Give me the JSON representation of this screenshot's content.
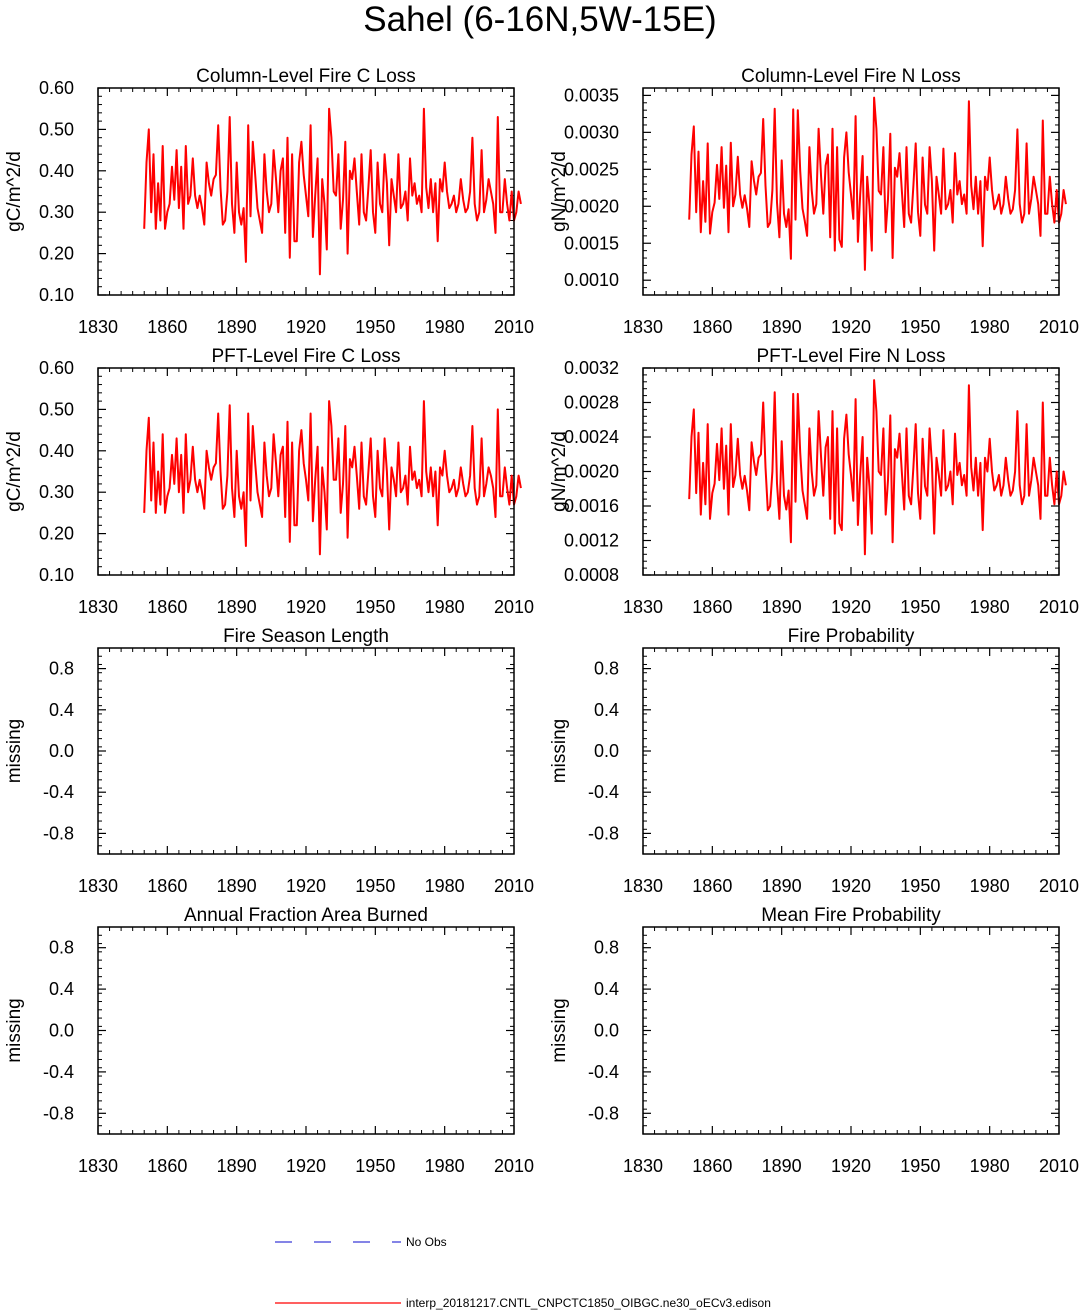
{
  "page": {
    "title": "Sahel (6-16N,5W-15E)"
  },
  "legend": {
    "items": [
      {
        "label": "No Obs",
        "color": "#3a3ad8",
        "style": "dashed"
      },
      {
        "label": "interp_20181217.CNTL_CNPCTC1850_OIBGC.ne30_oECv3.edison",
        "color": "#ff0000",
        "style": "solid"
      }
    ]
  },
  "chart_data": [
    {
      "type": "line",
      "title": "Column-Level Fire C Loss",
      "ylabel": "gC/m^2/d",
      "xlabel": "",
      "xlim": [
        1830,
        2010
      ],
      "ylim": [
        0.1,
        0.6
      ],
      "xticks": [
        "1830",
        "1860",
        "1890",
        "1920",
        "1950",
        "1980",
        "2010"
      ],
      "yticks": [
        "0.10",
        "0.20",
        "0.30",
        "0.40",
        "0.50",
        "0.60"
      ],
      "series": [
        {
          "name": "interp_20181217.CNTL_CNPCTC1850_OIBGC.ne30_oECv3.edison",
          "color": "#ff0000",
          "x_start": 1850,
          "x_step": 1,
          "values": [
            0.26,
            0.42,
            0.5,
            0.3,
            0.44,
            0.26,
            0.37,
            0.28,
            0.46,
            0.26,
            0.3,
            0.32,
            0.41,
            0.33,
            0.45,
            0.31,
            0.41,
            0.26,
            0.46,
            0.32,
            0.34,
            0.43,
            0.34,
            0.31,
            0.34,
            0.31,
            0.27,
            0.42,
            0.37,
            0.34,
            0.38,
            0.39,
            0.51,
            0.36,
            0.27,
            0.28,
            0.35,
            0.53,
            0.32,
            0.25,
            0.42,
            0.3,
            0.27,
            0.31,
            0.18,
            0.51,
            0.29,
            0.47,
            0.39,
            0.31,
            0.28,
            0.25,
            0.44,
            0.35,
            0.3,
            0.32,
            0.45,
            0.38,
            0.3,
            0.4,
            0.43,
            0.25,
            0.48,
            0.19,
            0.44,
            0.23,
            0.23,
            0.42,
            0.47,
            0.39,
            0.34,
            0.29,
            0.51,
            0.24,
            0.34,
            0.43,
            0.15,
            0.38,
            0.32,
            0.21,
            0.55,
            0.48,
            0.35,
            0.34,
            0.44,
            0.26,
            0.33,
            0.47,
            0.2,
            0.4,
            0.38,
            0.43,
            0.35,
            0.27,
            0.44,
            0.3,
            0.28,
            0.36,
            0.45,
            0.3,
            0.25,
            0.42,
            0.32,
            0.3,
            0.44,
            0.37,
            0.22,
            0.38,
            0.34,
            0.3,
            0.44,
            0.31,
            0.32,
            0.35,
            0.28,
            0.43,
            0.34,
            0.37,
            0.32,
            0.34,
            0.3,
            0.55,
            0.36,
            0.31,
            0.38,
            0.3,
            0.37,
            0.23,
            0.38,
            0.35,
            0.42,
            0.35,
            0.31,
            0.32,
            0.34,
            0.3,
            0.32,
            0.38,
            0.33,
            0.3,
            0.31,
            0.35,
            0.48,
            0.32,
            0.28,
            0.3,
            0.45,
            0.3,
            0.33,
            0.38,
            0.35,
            0.32,
            0.25,
            0.53,
            0.3,
            0.3,
            0.38,
            0.32,
            0.28,
            0.35,
            0.28,
            0.3,
            0.35,
            0.32
          ]
        }
      ]
    },
    {
      "type": "line",
      "title": "Column-Level Fire N Loss",
      "ylabel": "gN/m^2/d",
      "xlabel": "",
      "xlim": [
        1830,
        2010
      ],
      "ylim": [
        0.0008,
        0.0036
      ],
      "xticks": [
        "1830",
        "1860",
        "1890",
        "1920",
        "1950",
        "1980",
        "2010"
      ],
      "yticks": [
        "0.0010",
        "0.0015",
        "0.0020",
        "0.0025",
        "0.0030",
        "0.0035"
      ],
      "series": [
        {
          "name": "interp_20181217.CNTL_CNPCTC1850_OIBGC.ne30_oECv3.edison",
          "color": "#ff0000",
          "x_start": 1850,
          "x_step": 1,
          "values": [
            0.00182,
            0.0027,
            0.00308,
            0.00192,
            0.00274,
            0.00165,
            0.00234,
            0.00179,
            0.00285,
            0.00163,
            0.00192,
            0.00205,
            0.00256,
            0.0021,
            0.0028,
            0.00198,
            0.00255,
            0.00165,
            0.00286,
            0.002,
            0.00216,
            0.00267,
            0.00216,
            0.00198,
            0.00215,
            0.00197,
            0.00172,
            0.00261,
            0.00235,
            0.00216,
            0.0024,
            0.00245,
            0.00318,
            0.00228,
            0.00172,
            0.00178,
            0.00222,
            0.00332,
            0.00205,
            0.00158,
            0.00262,
            0.0019,
            0.00172,
            0.00196,
            0.00129,
            0.00331,
            0.00182,
            0.0033,
            0.00248,
            0.00197,
            0.0018,
            0.0016,
            0.0028,
            0.00222,
            0.0019,
            0.00203,
            0.00305,
            0.00242,
            0.0019,
            0.00255,
            0.0027,
            0.00158,
            0.00305,
            0.0014,
            0.0028,
            0.00155,
            0.00145,
            0.00266,
            0.003,
            0.00246,
            0.00216,
            0.00183,
            0.00322,
            0.00152,
            0.00216,
            0.00268,
            0.00114,
            0.0024,
            0.002,
            0.0014,
            0.00347,
            0.00305,
            0.00221,
            0.00216,
            0.0028,
            0.00165,
            0.0021,
            0.00298,
            0.0013,
            0.00252,
            0.0024,
            0.00272,
            0.00222,
            0.00172,
            0.0028,
            0.0019,
            0.00178,
            0.00228,
            0.00285,
            0.00192,
            0.0016,
            0.00266,
            0.00202,
            0.0019,
            0.0028,
            0.00234,
            0.0014,
            0.0024,
            0.00216,
            0.0019,
            0.00278,
            0.00196,
            0.00203,
            0.00222,
            0.00178,
            0.00272,
            0.00216,
            0.00234,
            0.00203,
            0.00216,
            0.0019,
            0.00342,
            0.00228,
            0.00196,
            0.0024,
            0.0019,
            0.00234,
            0.00146,
            0.0024,
            0.00222,
            0.00266,
            0.00222,
            0.00196,
            0.00203,
            0.00216,
            0.0019,
            0.00203,
            0.0024,
            0.0021,
            0.0019,
            0.00196,
            0.00222,
            0.00304,
            0.00203,
            0.00178,
            0.0019,
            0.00285,
            0.0019,
            0.0021,
            0.0024,
            0.00222,
            0.00203,
            0.0016,
            0.00316,
            0.0019,
            0.0019,
            0.0024,
            0.00203,
            0.00178,
            0.00222,
            0.00178,
            0.0019,
            0.00222,
            0.00203
          ]
        }
      ]
    },
    {
      "type": "line",
      "title": "PFT-Level Fire C Loss",
      "ylabel": "gC/m^2/d",
      "xlabel": "",
      "xlim": [
        1830,
        2010
      ],
      "ylim": [
        0.1,
        0.6
      ],
      "xticks": [
        "1830",
        "1860",
        "1890",
        "1920",
        "1950",
        "1980",
        "2010"
      ],
      "yticks": [
        "0.10",
        "0.20",
        "0.30",
        "0.40",
        "0.50",
        "0.60"
      ],
      "series": [
        {
          "name": "interp_20181217.CNTL_CNPCTC1850_OIBGC.ne30_oECv3.edison",
          "color": "#ff0000",
          "x_start": 1850,
          "x_step": 1,
          "values": [
            0.25,
            0.4,
            0.48,
            0.28,
            0.42,
            0.25,
            0.35,
            0.27,
            0.44,
            0.25,
            0.29,
            0.31,
            0.39,
            0.32,
            0.43,
            0.3,
            0.39,
            0.25,
            0.44,
            0.3,
            0.33,
            0.41,
            0.33,
            0.3,
            0.33,
            0.3,
            0.26,
            0.4,
            0.36,
            0.33,
            0.36,
            0.37,
            0.49,
            0.35,
            0.26,
            0.27,
            0.34,
            0.51,
            0.31,
            0.24,
            0.4,
            0.29,
            0.26,
            0.3,
            0.17,
            0.49,
            0.28,
            0.46,
            0.37,
            0.3,
            0.27,
            0.24,
            0.42,
            0.34,
            0.29,
            0.31,
            0.44,
            0.37,
            0.29,
            0.39,
            0.41,
            0.24,
            0.47,
            0.18,
            0.42,
            0.22,
            0.22,
            0.4,
            0.45,
            0.37,
            0.33,
            0.28,
            0.49,
            0.23,
            0.33,
            0.41,
            0.15,
            0.36,
            0.3,
            0.21,
            0.52,
            0.46,
            0.33,
            0.33,
            0.43,
            0.25,
            0.32,
            0.46,
            0.19,
            0.38,
            0.36,
            0.41,
            0.34,
            0.26,
            0.42,
            0.29,
            0.27,
            0.35,
            0.43,
            0.29,
            0.24,
            0.4,
            0.31,
            0.29,
            0.43,
            0.35,
            0.21,
            0.36,
            0.33,
            0.29,
            0.42,
            0.3,
            0.31,
            0.34,
            0.27,
            0.41,
            0.33,
            0.35,
            0.31,
            0.33,
            0.29,
            0.52,
            0.35,
            0.3,
            0.36,
            0.29,
            0.35,
            0.22,
            0.36,
            0.34,
            0.4,
            0.34,
            0.3,
            0.31,
            0.33,
            0.29,
            0.31,
            0.36,
            0.32,
            0.29,
            0.3,
            0.34,
            0.46,
            0.31,
            0.27,
            0.29,
            0.43,
            0.29,
            0.32,
            0.36,
            0.34,
            0.31,
            0.24,
            0.5,
            0.29,
            0.29,
            0.36,
            0.31,
            0.27,
            0.34,
            0.27,
            0.29,
            0.34,
            0.31
          ]
        }
      ]
    },
    {
      "type": "line",
      "title": "PFT-Level Fire N Loss",
      "ylabel": "gN/m^2/d",
      "xlabel": "",
      "xlim": [
        1830,
        2010
      ],
      "ylim": [
        0.0008,
        0.0032
      ],
      "xticks": [
        "1830",
        "1860",
        "1890",
        "1920",
        "1950",
        "1980",
        "2010"
      ],
      "yticks": [
        "0.0008",
        "0.0012",
        "0.0016",
        "0.0020",
        "0.0024",
        "0.0028",
        "0.0032"
      ],
      "series": [
        {
          "name": "interp_20181217.CNTL_CNPCTC1850_OIBGC.ne30_oECv3.edison",
          "color": "#ff0000",
          "x_start": 1850,
          "x_step": 1,
          "values": [
            0.00168,
            0.0024,
            0.00272,
            0.00175,
            0.00245,
            0.0015,
            0.0021,
            0.00162,
            0.00255,
            0.00145,
            0.00175,
            0.00186,
            0.00232,
            0.0019,
            0.0025,
            0.0018,
            0.0023,
            0.0015,
            0.00255,
            0.00182,
            0.00196,
            0.00238,
            0.00196,
            0.0018,
            0.00195,
            0.00178,
            0.00155,
            0.00234,
            0.00212,
            0.00196,
            0.00216,
            0.0022,
            0.0028,
            0.00205,
            0.00155,
            0.0016,
            0.002,
            0.00292,
            0.00186,
            0.00145,
            0.00235,
            0.00172,
            0.00156,
            0.00178,
            0.00118,
            0.0029,
            0.00165,
            0.0029,
            0.00222,
            0.00178,
            0.00162,
            0.00145,
            0.0025,
            0.002,
            0.00172,
            0.00184,
            0.0027,
            0.00218,
            0.00172,
            0.00228,
            0.0024,
            0.00145,
            0.0027,
            0.00128,
            0.0025,
            0.0014,
            0.00132,
            0.00238,
            0.00266,
            0.0022,
            0.00196,
            0.00166,
            0.00284,
            0.00138,
            0.00196,
            0.0024,
            0.00104,
            0.00216,
            0.00182,
            0.00128,
            0.00306,
            0.0027,
            0.002,
            0.00196,
            0.0025,
            0.0015,
            0.0019,
            0.00265,
            0.00118,
            0.00226,
            0.00216,
            0.00244,
            0.002,
            0.00156,
            0.0025,
            0.00172,
            0.00162,
            0.00205,
            0.00255,
            0.00175,
            0.00145,
            0.00238,
            0.00183,
            0.00172,
            0.0025,
            0.0021,
            0.00128,
            0.00216,
            0.00196,
            0.00172,
            0.00248,
            0.00178,
            0.00184,
            0.002,
            0.00162,
            0.00244,
            0.00196,
            0.0021,
            0.00184,
            0.00196,
            0.00172,
            0.003,
            0.00205,
            0.00178,
            0.00216,
            0.00172,
            0.0021,
            0.00132,
            0.00216,
            0.002,
            0.00238,
            0.002,
            0.00178,
            0.00184,
            0.00196,
            0.00172,
            0.00184,
            0.00216,
            0.0019,
            0.00172,
            0.00178,
            0.002,
            0.0027,
            0.00184,
            0.00162,
            0.00172,
            0.00255,
            0.00172,
            0.0019,
            0.00216,
            0.002,
            0.00184,
            0.00145,
            0.0028,
            0.00172,
            0.00172,
            0.00216,
            0.00184,
            0.00162,
            0.002,
            0.00162,
            0.00172,
            0.002,
            0.00184
          ]
        }
      ]
    },
    {
      "type": "line",
      "title": "Fire Season Length",
      "ylabel": "missing",
      "xlabel": "",
      "xlim": [
        1830,
        2010
      ],
      "ylim": [
        -1.0,
        1.0
      ],
      "xticks": [
        "1830",
        "1860",
        "1890",
        "1920",
        "1950",
        "1980",
        "2010"
      ],
      "yticks": [
        "-0.8",
        "-0.4",
        "0.0",
        "0.4",
        "0.8"
      ],
      "series": []
    },
    {
      "type": "line",
      "title": "Fire Probability",
      "ylabel": "missing",
      "xlabel": "",
      "xlim": [
        1830,
        2010
      ],
      "ylim": [
        -1.0,
        1.0
      ],
      "xticks": [
        "1830",
        "1860",
        "1890",
        "1920",
        "1950",
        "1980",
        "2010"
      ],
      "yticks": [
        "-0.8",
        "-0.4",
        "0.0",
        "0.4",
        "0.8"
      ],
      "series": []
    },
    {
      "type": "line",
      "title": "Annual Fraction Area Burned",
      "ylabel": "missing",
      "xlabel": "",
      "xlim": [
        1830,
        2010
      ],
      "ylim": [
        -1.0,
        1.0
      ],
      "xticks": [
        "1830",
        "1860",
        "1890",
        "1920",
        "1950",
        "1980",
        "2010"
      ],
      "yticks": [
        "-0.8",
        "-0.4",
        "0.0",
        "0.4",
        "0.8"
      ],
      "series": []
    },
    {
      "type": "line",
      "title": "Mean Fire Probability",
      "ylabel": "missing",
      "xlabel": "",
      "xlim": [
        1830,
        2010
      ],
      "ylim": [
        -1.0,
        1.0
      ],
      "xticks": [
        "1830",
        "1860",
        "1890",
        "1920",
        "1950",
        "1980",
        "2010"
      ],
      "yticks": [
        "-0.8",
        "-0.4",
        "0.0",
        "0.4",
        "0.8"
      ],
      "series": []
    }
  ]
}
